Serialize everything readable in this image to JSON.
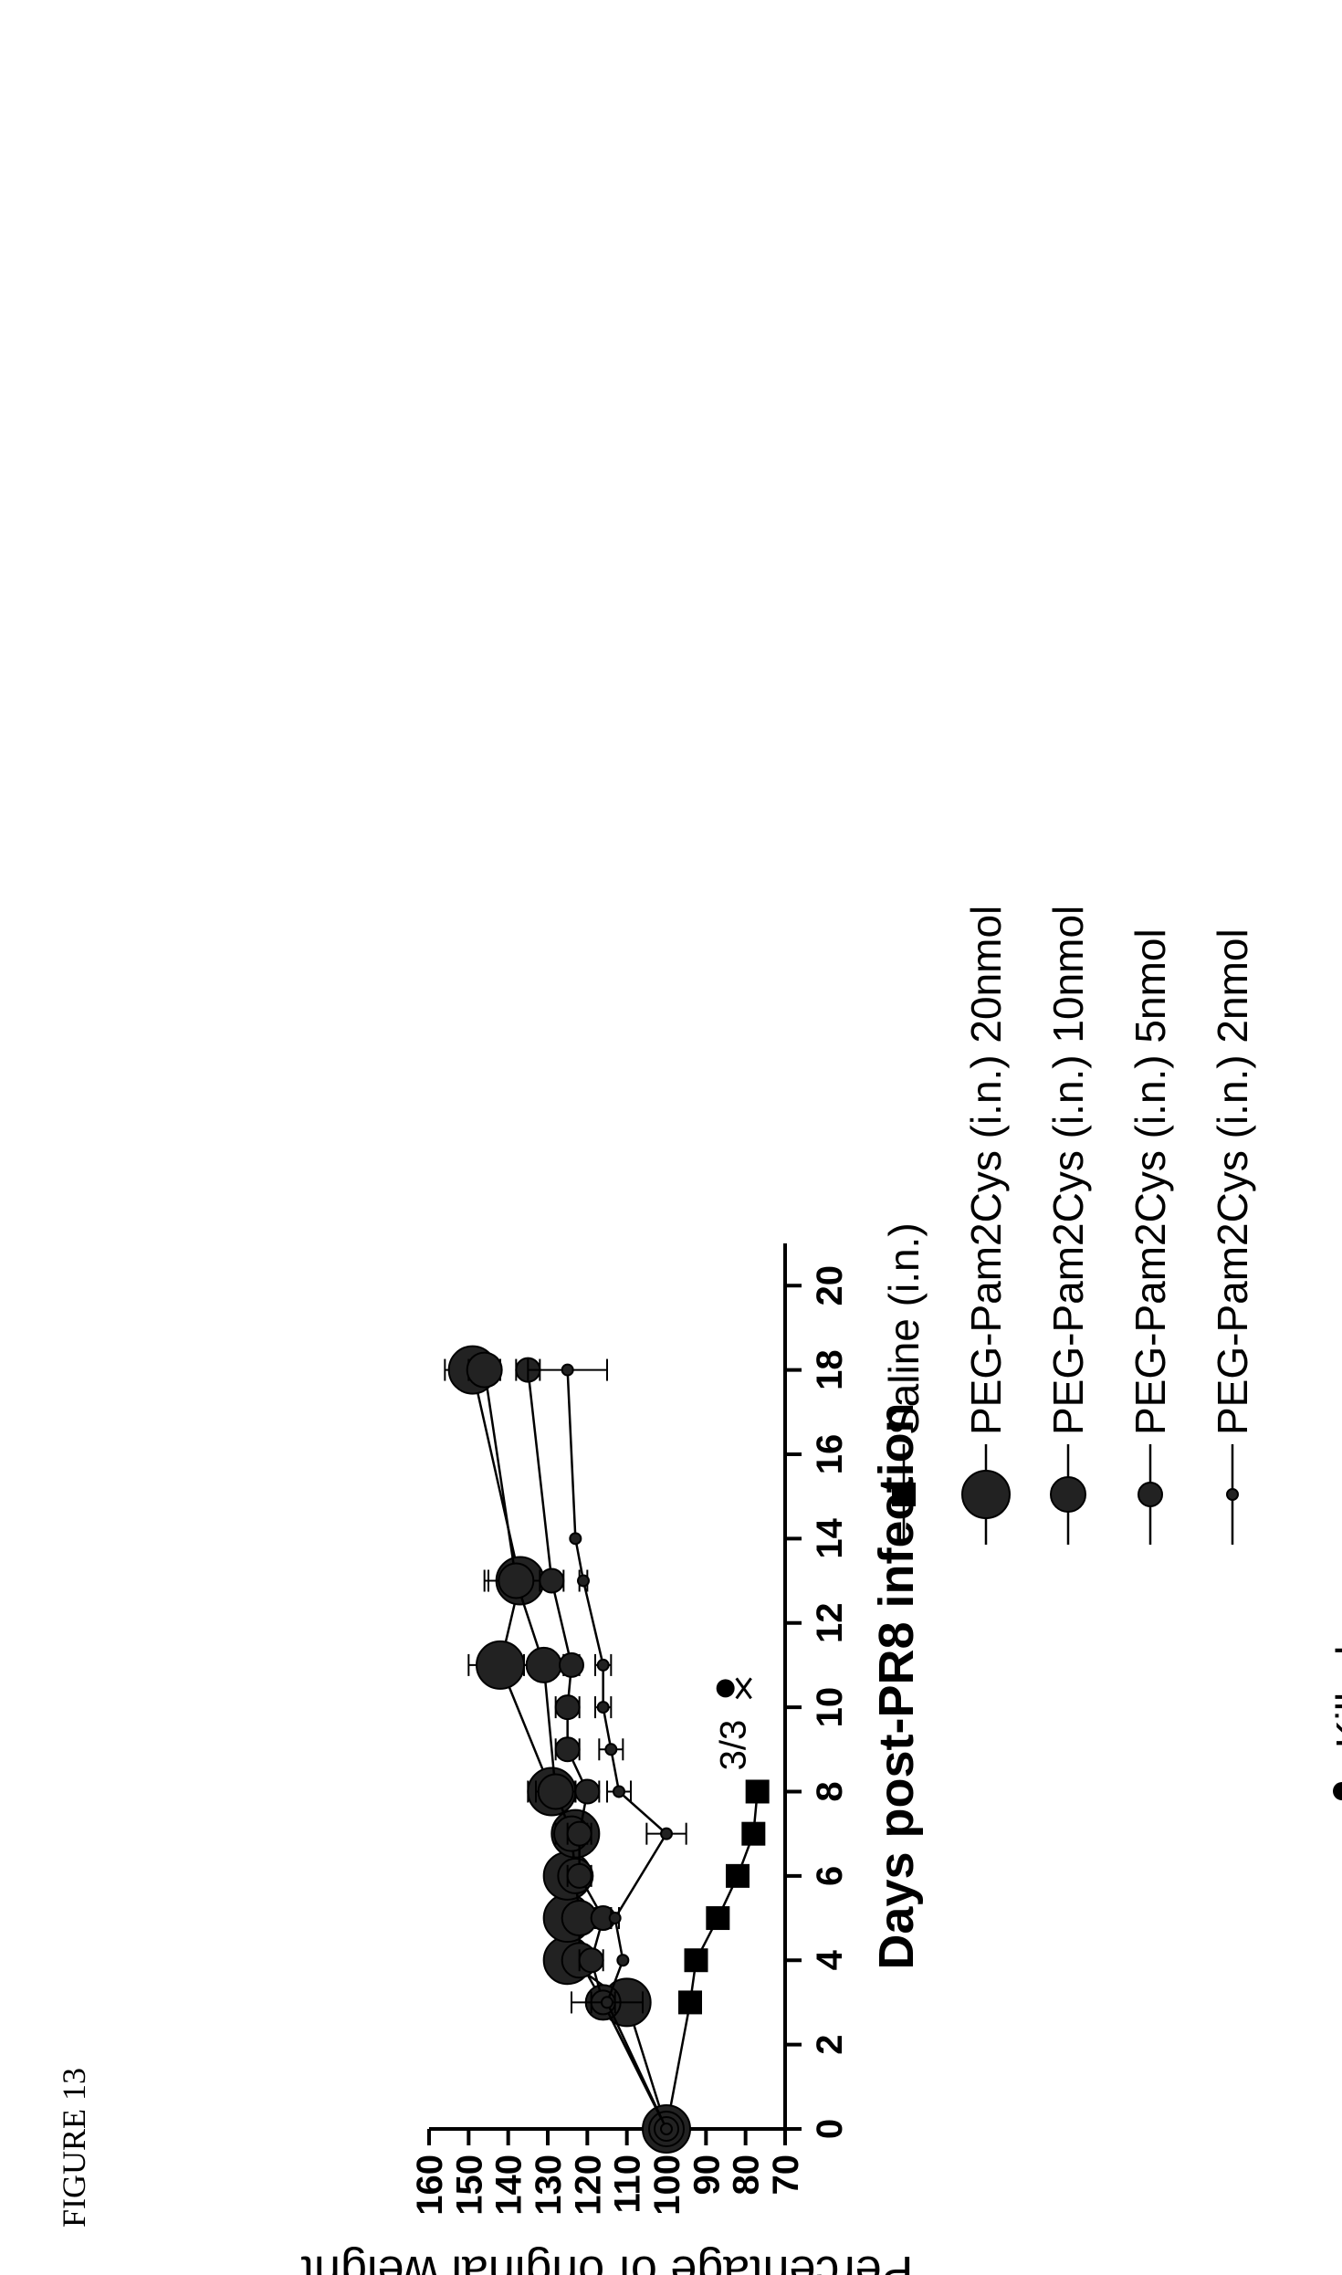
{
  "figure_label": "FIGURE 13",
  "chart_data": {
    "type": "line",
    "title": "",
    "xlabel": "Days  post-PR8  infection",
    "ylabel": "Percentage of original weight",
    "xlim": [
      0,
      21
    ],
    "ylim": [
      70,
      160
    ],
    "x_ticks": [
      0,
      2,
      4,
      6,
      8,
      10,
      12,
      14,
      16,
      18,
      20
    ],
    "y_ticks": [
      70,
      80,
      90,
      100,
      110,
      120,
      130,
      140,
      150,
      160
    ],
    "orientation": "rotated 90 degrees counter-clockwise",
    "legend_placement": "right",
    "series": [
      {
        "name": "Saline (i.n.)",
        "marker": "square",
        "points": [
          [
            0,
            100
          ],
          [
            3,
            94
          ],
          [
            4,
            92.5
          ],
          [
            5,
            87
          ],
          [
            6,
            82
          ],
          [
            7,
            78
          ],
          [
            8,
            77
          ]
        ],
        "errors": [
          0,
          0,
          0,
          1.5,
          0,
          0,
          0
        ]
      },
      {
        "name": "PEG-Pam2Cys (i.n.) 20nmol",
        "marker": "circle-xl",
        "points": [
          [
            0,
            100
          ],
          [
            3,
            110
          ],
          [
            4,
            125
          ],
          [
            5,
            125
          ],
          [
            6,
            125
          ],
          [
            7,
            123
          ],
          [
            8,
            129
          ],
          [
            11,
            142
          ],
          [
            13,
            137
          ],
          [
            18,
            149
          ]
        ],
        "errors": [
          0,
          3,
          4,
          4,
          3,
          4,
          6,
          8,
          8,
          7
        ]
      },
      {
        "name": "PEG-Pam2Cys (i.n.) 10nmol",
        "marker": "circle-lg",
        "points": [
          [
            0,
            100
          ],
          [
            3,
            116
          ],
          [
            4,
            122
          ],
          [
            5,
            122
          ],
          [
            6,
            123
          ],
          [
            7,
            124
          ],
          [
            8,
            128
          ],
          [
            11,
            131
          ],
          [
            13,
            138
          ],
          [
            18,
            146
          ]
        ],
        "errors": [
          0,
          3,
          3,
          3,
          3,
          4,
          5,
          5,
          8,
          4
        ]
      },
      {
        "name": "PEG-Pam2Cys (i.n.) 5nmol",
        "marker": "circle-md",
        "points": [
          [
            0,
            100
          ],
          [
            3,
            116
          ],
          [
            4,
            119
          ],
          [
            5,
            116
          ],
          [
            6,
            122
          ],
          [
            7,
            122
          ],
          [
            8,
            120
          ],
          [
            9,
            125
          ],
          [
            10,
            125
          ],
          [
            11,
            124
          ],
          [
            13,
            129
          ],
          [
            18,
            135
          ]
        ],
        "errors": [
          0,
          3,
          3,
          2,
          3,
          3,
          3,
          3,
          3,
          2,
          3,
          3
        ]
      },
      {
        "name": "PEG-Pam2Cys (i.n.) 2nmol",
        "marker": "circle-sm",
        "points": [
          [
            0,
            100
          ],
          [
            3,
            115
          ],
          [
            4,
            111
          ],
          [
            5,
            113
          ],
          [
            7,
            100
          ],
          [
            8,
            112
          ],
          [
            9,
            114
          ],
          [
            10,
            116
          ],
          [
            11,
            116
          ],
          [
            13,
            121
          ],
          [
            14,
            123
          ],
          [
            18,
            125
          ]
        ],
        "errors": [
          0,
          9,
          0,
          1,
          5,
          3,
          3,
          2,
          2,
          1,
          0,
          10
        ]
      }
    ],
    "annotations": [
      {
        "text": "3/3",
        "x": 8.5,
        "y": 80,
        "icon": "skull-crossbones"
      },
      {
        "text": "=Killed",
        "icon": "skull-crossbones"
      }
    ]
  }
}
